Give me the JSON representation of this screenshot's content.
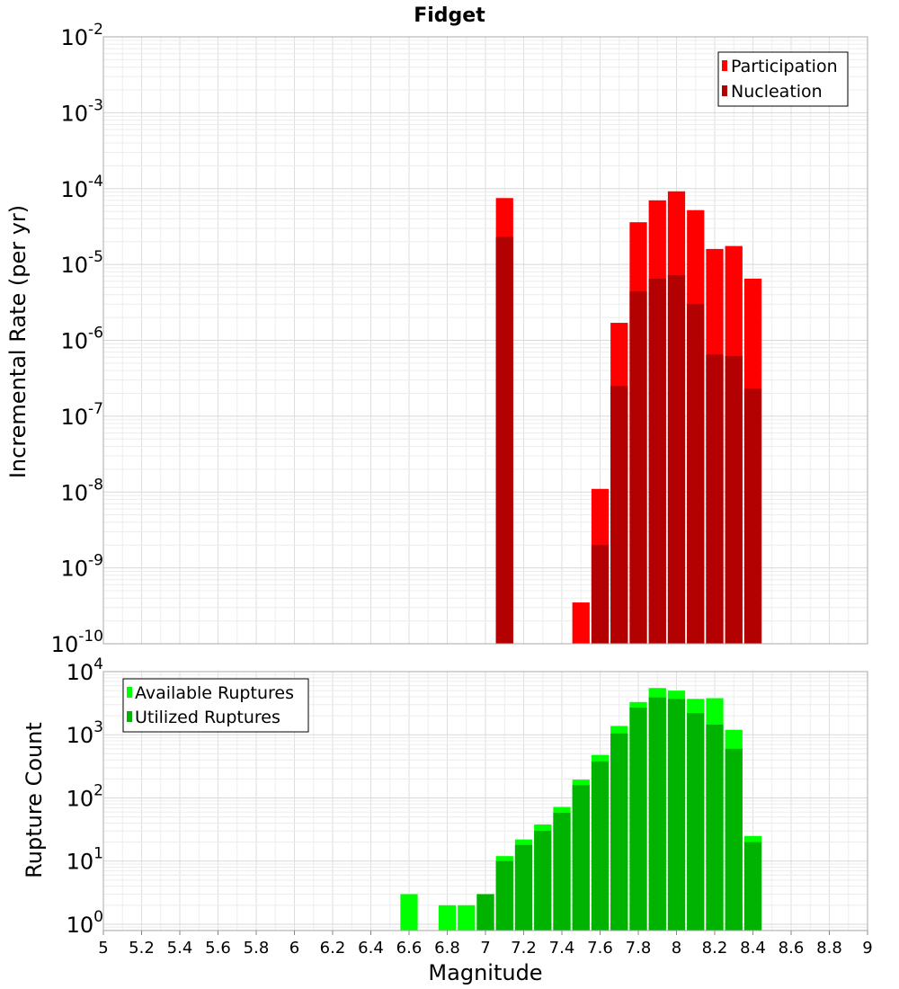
{
  "chart_data": [
    {
      "type": "bar",
      "title": "Fidget",
      "ylabel": "Incremental Rate (per yr)",
      "yscale": "log",
      "ylim_exp": [
        -10,
        -2
      ],
      "y_tick_base": "10",
      "y_tick_exponents": [
        "-10",
        "-9",
        "-8",
        "-7",
        "-6",
        "-5",
        "-4",
        "-3",
        "-2"
      ],
      "xlim": [
        5,
        9
      ],
      "bin_width": 0.1,
      "legend_position": "top-right",
      "grid": true,
      "series": [
        {
          "name": "Participation",
          "color": "#ff0000",
          "x": [
            7.1,
            7.5,
            7.6,
            7.7,
            7.8,
            7.9,
            8.0,
            8.1,
            8.2,
            8.3,
            8.4
          ],
          "values": [
            7.5e-05,
            3.5e-10,
            1.1e-08,
            1.7e-06,
            3.6e-05,
            7e-05,
            9.2e-05,
            5.2e-05,
            1.6e-05,
            1.75e-05,
            6.5e-06
          ]
        },
        {
          "name": "Nucleation",
          "color": "#b30000",
          "x": [
            7.1,
            7.6,
            7.7,
            7.8,
            7.9,
            8.0,
            8.1,
            8.2,
            8.3,
            8.4
          ],
          "values": [
            2.3e-05,
            2e-09,
            2.5e-07,
            4.4e-06,
            6.5e-06,
            7.2e-06,
            3e-06,
            6.5e-07,
            6.2e-07,
            2.3e-07
          ]
        }
      ]
    },
    {
      "type": "bar",
      "title": "",
      "xlabel": "Magnitude",
      "ylabel": "Rupture Count",
      "yscale": "log",
      "ylim_exp": [
        -0.1,
        4
      ],
      "y_tick_base": "10",
      "y_tick_exponents": [
        "0",
        "1",
        "2",
        "3",
        "4"
      ],
      "xlim": [
        5,
        9
      ],
      "x_tick_labels": [
        "5",
        "5.2",
        "5.4",
        "5.6",
        "5.8",
        "6",
        "6.2",
        "6.4",
        "6.6",
        "6.8",
        "7",
        "7.2",
        "7.4",
        "7.6",
        "7.8",
        "8",
        "8.2",
        "8.4",
        "8.6",
        "8.8",
        "9"
      ],
      "bin_width": 0.1,
      "legend_position": "top-left",
      "grid": true,
      "series": [
        {
          "name": "Available Ruptures",
          "color": "#00ff00",
          "x": [
            6.6,
            6.8,
            6.9,
            7.0,
            7.1,
            7.2,
            7.3,
            7.4,
            7.5,
            7.6,
            7.7,
            7.8,
            7.9,
            8.0,
            8.1,
            8.2,
            8.3,
            8.4
          ],
          "values": [
            3,
            2,
            2,
            3,
            12,
            22,
            38,
            72,
            195,
            480,
            1380,
            3300,
            5500,
            5000,
            3700,
            3800,
            1200,
            25
          ]
        },
        {
          "name": "Utilized Ruptures",
          "color": "#00b300",
          "x": [
            7.0,
            7.1,
            7.2,
            7.3,
            7.4,
            7.5,
            7.6,
            7.7,
            7.8,
            7.9,
            8.0,
            8.1,
            8.2,
            8.3,
            8.4
          ],
          "values": [
            3,
            10,
            18,
            30,
            58,
            160,
            380,
            1050,
            2700,
            3900,
            3700,
            2200,
            1450,
            600,
            20
          ]
        }
      ]
    }
  ]
}
